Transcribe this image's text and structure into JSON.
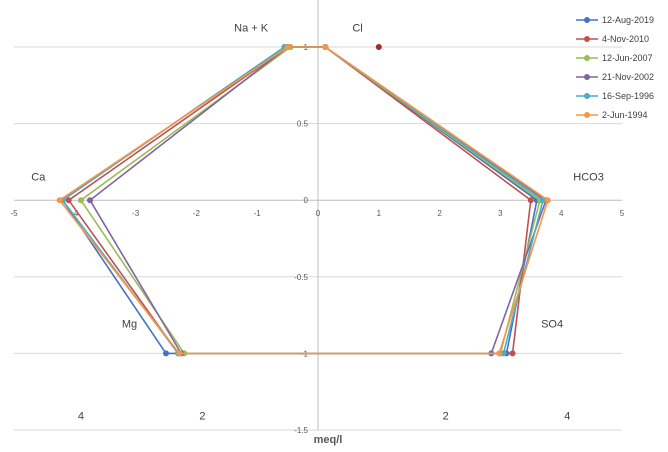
{
  "chart_data": {
    "type": "line",
    "xlabel": "meq/l",
    "xlim": [
      -5,
      5
    ],
    "ylim": [
      -1.5,
      1
    ],
    "x_ticks": [
      "-5",
      "-4",
      "-3",
      "-2",
      "-1",
      "0",
      "1",
      "2",
      "3",
      "4",
      "5"
    ],
    "y_ticks": [
      "-1.5",
      "-1",
      "-0.5",
      "0",
      "0.5",
      "1"
    ],
    "grid": true,
    "legend_position": "top-right",
    "ion_labels": [
      {
        "text": "Na + K",
        "x": -1.1,
        "y": 1.1
      },
      {
        "text": "Cl",
        "x": 0.65,
        "y": 1.1
      },
      {
        "text": "Ca",
        "x": -4.6,
        "y": 0.13
      },
      {
        "text": "HCO3",
        "x": 4.45,
        "y": 0.13
      },
      {
        "text": "Mg",
        "x": -3.1,
        "y": -0.83
      },
      {
        "text": "SO4",
        "x": 3.85,
        "y": -0.83
      }
    ],
    "scale_labels": [
      {
        "text": "4",
        "x": -3.9,
        "y": -1.43
      },
      {
        "text": "2",
        "x": -1.9,
        "y": -1.43
      },
      {
        "text": "2",
        "x": 2.1,
        "y": -1.43
      },
      {
        "text": "4",
        "x": 4.1,
        "y": -1.43
      }
    ],
    "extra_points": [
      {
        "x": 1.0,
        "y": 1,
        "color": "#a52a2a"
      }
    ],
    "series": [
      {
        "name": "12-Aug-2019",
        "color": "#4472c4",
        "x": [
          -0.55,
          0.12,
          3.6,
          3.1,
          -2.5,
          -4.2,
          -0.55
        ],
        "y": [
          1,
          1,
          0,
          -1,
          -1,
          0,
          1
        ]
      },
      {
        "name": "4-Nov-2010",
        "color": "#c0504d",
        "x": [
          -0.5,
          0.12,
          3.5,
          3.2,
          -2.3,
          -4.1,
          -0.5
        ],
        "y": [
          1,
          1,
          0,
          -1,
          -1,
          0,
          1
        ]
      },
      {
        "name": "12-Jun-2007",
        "color": "#9bbb59",
        "x": [
          -0.45,
          0.12,
          3.65,
          3.0,
          -2.2,
          -3.9,
          -0.45
        ],
        "y": [
          1,
          1,
          0,
          -1,
          -1,
          0,
          1
        ]
      },
      {
        "name": "21-Nov-2002",
        "color": "#8064a2",
        "x": [
          -0.5,
          0.12,
          3.75,
          2.85,
          -2.25,
          -3.75,
          -0.5
        ],
        "y": [
          1,
          1,
          0,
          -1,
          -1,
          0,
          1
        ]
      },
      {
        "name": "16-Sep-1996",
        "color": "#4bacc6",
        "x": [
          -0.55,
          0.12,
          3.7,
          3.05,
          -2.3,
          -4.2,
          -0.55
        ],
        "y": [
          1,
          1,
          0,
          -1,
          -1,
          0,
          1
        ]
      },
      {
        "name": "2-Jun-1994",
        "color": "#f79646",
        "x": [
          -0.5,
          0.12,
          3.78,
          2.98,
          -2.28,
          -4.25,
          -0.5
        ],
        "y": [
          1,
          1,
          0,
          -1,
          -1,
          0,
          1
        ]
      }
    ]
  }
}
